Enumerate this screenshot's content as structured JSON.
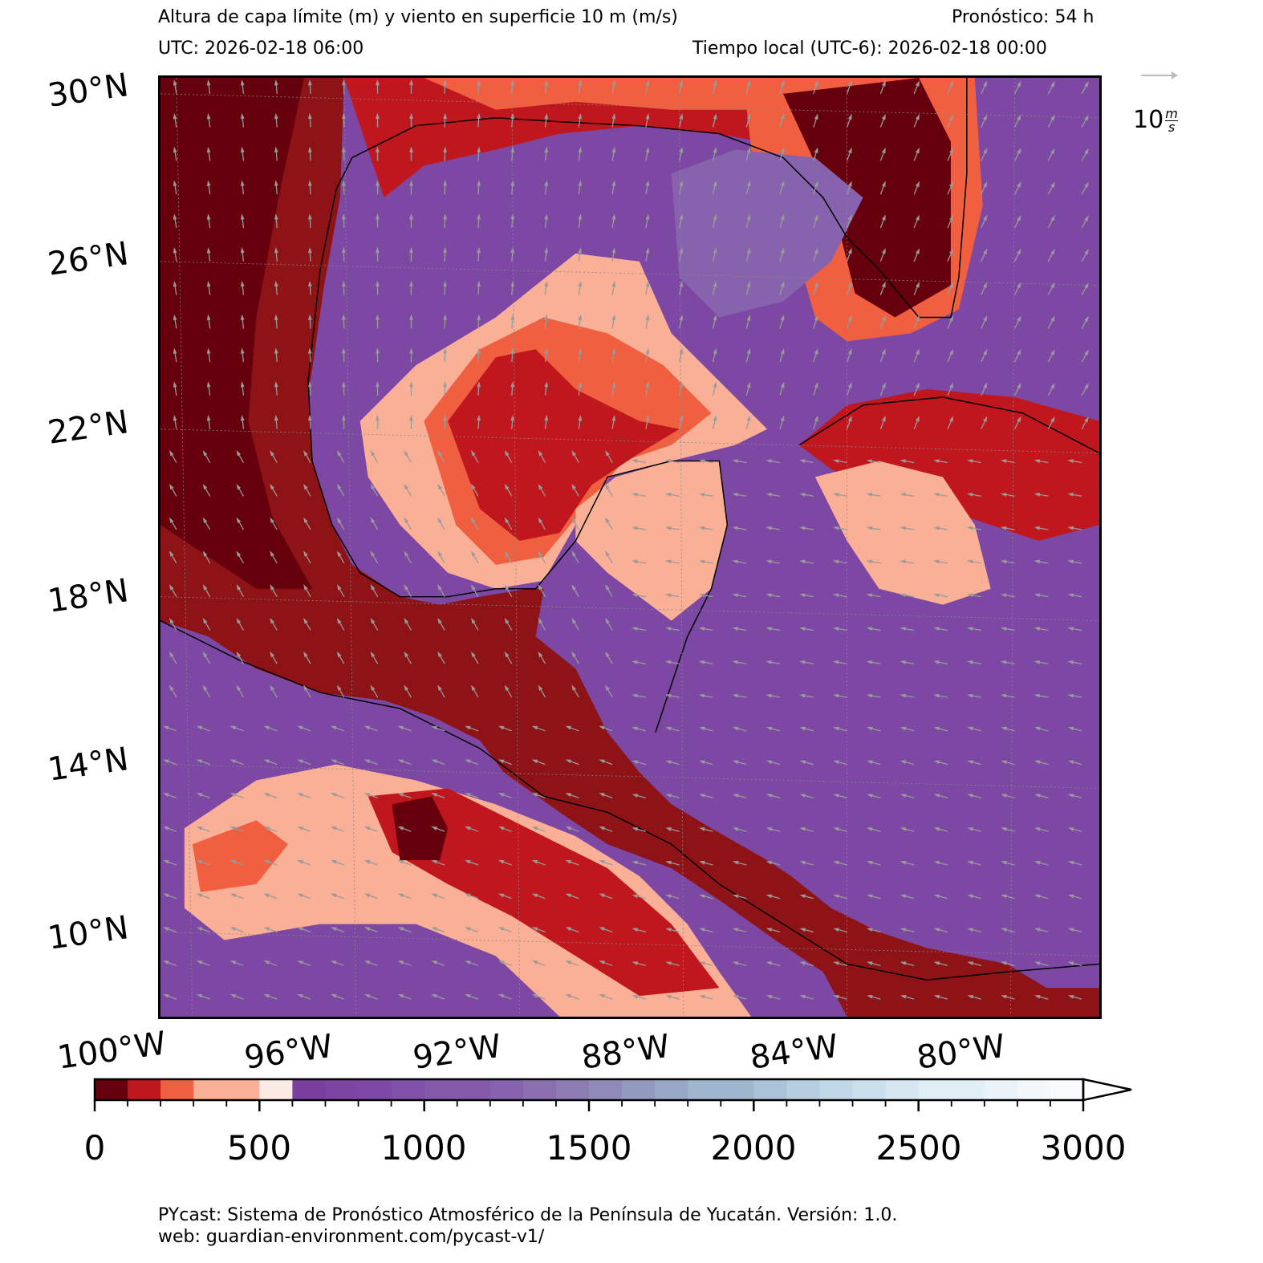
{
  "header": {
    "title": "Altura de capa límite (m) y viento en superficie 10 m (m/s)",
    "forecast": "Pronóstico: 54 h",
    "utc": "UTC:  2026-02-18 06:00",
    "local": "Tiempo local (UTC-6): 2026-02-18 00:00"
  },
  "map": {
    "lat_labels": [
      "30°N",
      "26°N",
      "22°N",
      "18°N",
      "14°N",
      "10°N"
    ],
    "lon_labels": [
      "100°W",
      "96°W",
      "92°W",
      "88°W",
      "84°W",
      "80°W"
    ]
  },
  "wind_key": {
    "value": "10",
    "unit": "m",
    "per": "s"
  },
  "colorbar": {
    "ticks": [
      "0",
      "500",
      "1000",
      "1500",
      "2000",
      "2500",
      "3000"
    ],
    "colors": [
      "#67000d",
      "#c0171e",
      "#f06040",
      "#f9b096",
      "#fdece6",
      "#7a3f9e",
      "#7e46a2",
      "#8048a6",
      "#8150a8",
      "#8459aa",
      "#8763ad",
      "#8a6eb0",
      "#8d7cb4",
      "#8f8ab9",
      "#9299bf",
      "#97a8c6",
      "#9fb6cf",
      "#aac3d8",
      "#b5cee0",
      "#c0d8e7",
      "#cbe0ed",
      "#d6e7f2",
      "#e0eef6",
      "#eaf3f9",
      "#f3f8fc",
      "#f9fbfd"
    ]
  },
  "footer": {
    "line1": "PYcast: Sistema de Pronóstico Atmosférico de la Península de Yucatán. Versión: 1.0.",
    "line2": "web: guardian-environment.com/pycast-v1/"
  }
}
